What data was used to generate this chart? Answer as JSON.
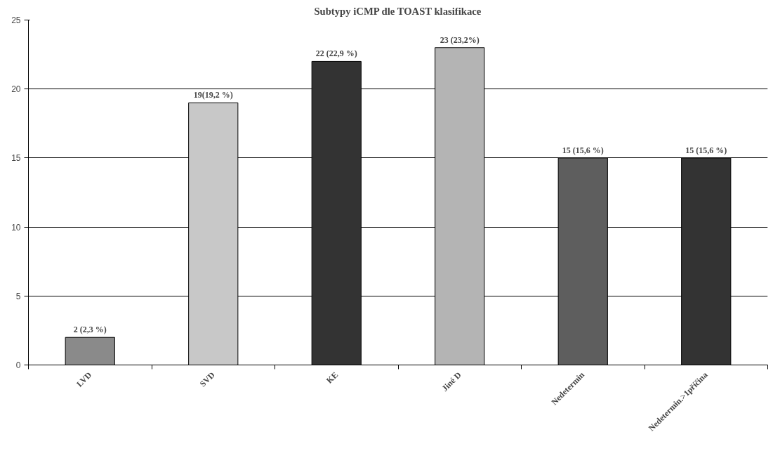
{
  "chart_data": {
    "type": "bar",
    "title": "Subtypy iCMP dle TOAST klasifikace",
    "categories": [
      "LVD",
      "SVD",
      "KE",
      "Jiné D",
      "Nedetermin",
      "Nedetermin.>1příčina"
    ],
    "values": [
      2,
      19,
      22,
      23,
      15,
      15
    ],
    "colors": [
      "#8a8a8a",
      "#c8c8c8",
      "#333333",
      "#b4b4b4",
      "#5e5e5e",
      "#333333"
    ],
    "value_labels": [
      "2 (2,3 %)",
      "19(19,2 %)",
      "22 (22,9 %)",
      "23 (23,2%)",
      "15 (15,6 %)",
      "15 (15,6 %)"
    ],
    "ylim": [
      0,
      25
    ],
    "yticks": [
      0,
      5,
      10,
      15,
      20,
      25
    ],
    "grid": "y"
  }
}
